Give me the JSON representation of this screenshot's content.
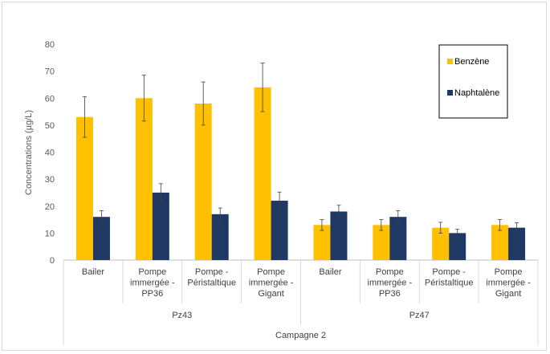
{
  "chart_data": {
    "type": "bar",
    "ylabel": "Concentrations (µg/L)",
    "ylim": [
      0,
      80
    ],
    "yticks": [
      0,
      10,
      20,
      30,
      40,
      50,
      60,
      70,
      80
    ],
    "grid": false,
    "legend_position": "top-right",
    "top_group": "Campagne 2",
    "groups": [
      {
        "label": "Pz43",
        "categories": [
          [
            "Bailer"
          ],
          [
            "Pompe",
            "immergée -",
            "PP36"
          ],
          [
            "Pompe -",
            "Péristaltique"
          ],
          [
            "Pompe",
            "immergée -",
            "Gigant"
          ]
        ]
      },
      {
        "label": "Pz47",
        "categories": [
          [
            "Bailer"
          ],
          [
            "Pompe",
            "immergée -",
            "PP36"
          ],
          [
            "Pompe -",
            "Péristaltique"
          ],
          [
            "Pompe",
            "immergée -",
            "Gigant"
          ]
        ]
      }
    ],
    "series": [
      {
        "name": "Benzène",
        "color": "#FFC000",
        "values": [
          53,
          60,
          58,
          64,
          13,
          13,
          12,
          13
        ],
        "errors": [
          7.5,
          8.5,
          8,
          9,
          2,
          2,
          2,
          2
        ]
      },
      {
        "name": "Naphtalène",
        "color": "#1F3864",
        "values": [
          16,
          25,
          17,
          22,
          18,
          16,
          10,
          12
        ],
        "errors": [
          2.3,
          3.3,
          2.3,
          3.2,
          2.3,
          2.3,
          1.4,
          1.8
        ]
      }
    ]
  }
}
